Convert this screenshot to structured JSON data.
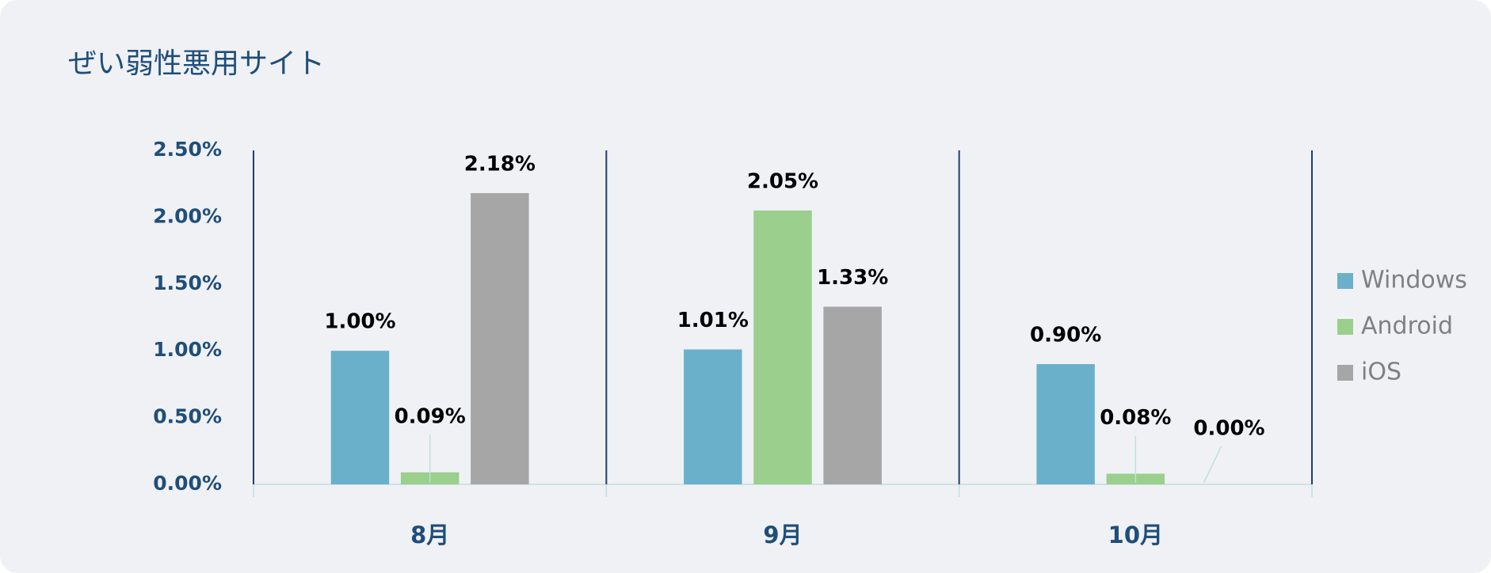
{
  "chart_data": {
    "type": "bar",
    "title": "ぜい弱性悪用サイト",
    "categories": [
      "8月",
      "9月",
      "10月"
    ],
    "series": [
      {
        "name": "Windows",
        "color": "#6ab0cb",
        "values": [
          1.0,
          1.01,
          0.9
        ],
        "value_labels": [
          "1.00%",
          "1.01%",
          "0.90%"
        ]
      },
      {
        "name": "Android",
        "color": "#9acf8e",
        "values": [
          0.09,
          2.05,
          0.08
        ],
        "value_labels": [
          "0.09%",
          "2.05%",
          "0.08%"
        ]
      },
      {
        "name": "iOS",
        "color": "#a6a6a6",
        "values": [
          2.18,
          1.33,
          0.0
        ],
        "value_labels": [
          "2.18%",
          "1.33%",
          "0.00%"
        ]
      }
    ],
    "ylim": [
      0,
      2.5
    ],
    "yticks": [
      {
        "value": 0,
        "label": "0.00%"
      },
      {
        "value": 0.5,
        "label": "0.50%"
      },
      {
        "value": 1.0,
        "label": "1.00%"
      },
      {
        "value": 1.5,
        "label": "1.50%"
      },
      {
        "value": 2.0,
        "label": "2.00%"
      },
      {
        "value": 2.5,
        "label": "2.50%"
      }
    ],
    "legend": "right"
  }
}
